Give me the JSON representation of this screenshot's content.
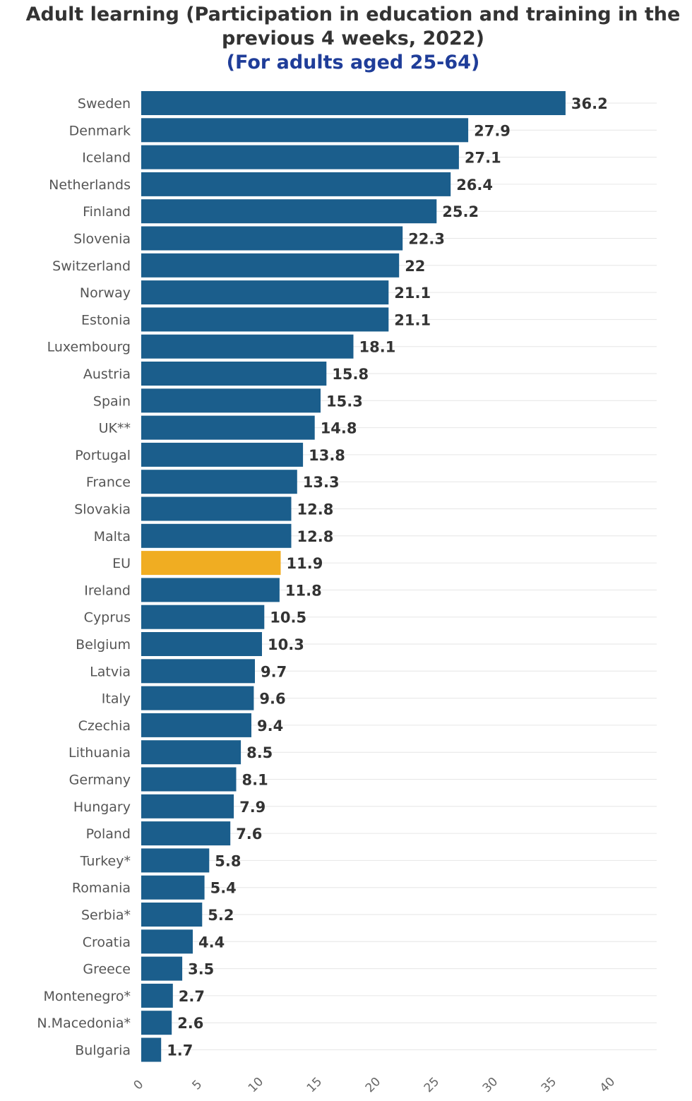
{
  "chart_data": {
    "type": "bar",
    "orientation": "horizontal",
    "title": "Adult learning (Participation in education and training in the previous 4 weeks, 2022)",
    "title_lines": [
      "Adult learning (Participation in education and training in the",
      "previous 4 weeks, 2022)"
    ],
    "subtitle": "(For adults aged 25-64)",
    "xlabel": "",
    "ylabel": "",
    "xlim": [
      0,
      44
    ],
    "ticks": [
      0,
      5,
      10,
      15,
      20,
      25,
      30,
      35,
      40
    ],
    "grid": true,
    "categories": [
      "Sweden",
      "Denmark",
      "Iceland",
      "Netherlands",
      "Finland",
      "Slovenia",
      "Switzerland",
      "Norway",
      "Estonia",
      "Luxembourg",
      "Austria",
      "Spain",
      "UK**",
      "Portugal",
      "France",
      "Slovakia",
      "Malta",
      "EU",
      "Ireland",
      "Cyprus",
      "Belgium",
      "Latvia",
      "Italy",
      "Czechia",
      "Lithuania",
      "Germany",
      "Hungary",
      "Poland",
      "Turkey*",
      "Romania",
      "Serbia*",
      "Croatia",
      "Greece",
      "Montenegro*",
      "N.Macedonia*",
      "Bulgaria"
    ],
    "values": [
      36.2,
      27.9,
      27.1,
      26.4,
      25.2,
      22.3,
      22,
      21.1,
      21.1,
      18.1,
      15.8,
      15.3,
      14.8,
      13.8,
      13.3,
      12.8,
      12.8,
      11.9,
      11.8,
      10.5,
      10.3,
      9.7,
      9.6,
      9.4,
      8.5,
      8.1,
      7.9,
      7.6,
      5.8,
      5.4,
      5.2,
      4.4,
      3.5,
      2.7,
      2.6,
      1.7
    ],
    "value_labels": [
      "36.2",
      "27.9",
      "27.1",
      "26.4",
      "25.2",
      "22.3",
      "22",
      "21.1",
      "21.1",
      "18.1",
      "15.8",
      "15.3",
      "14.8",
      "13.8",
      "13.3",
      "12.8",
      "12.8",
      "11.9",
      "11.8",
      "10.5",
      "10.3",
      "9.7",
      "9.6",
      "9.4",
      "8.5",
      "8.1",
      "7.9",
      "7.6",
      "5.8",
      "5.4",
      "5.2",
      "4.4",
      "3.5",
      "2.7",
      "2.6",
      "1.7"
    ],
    "colors": {
      "default": "#1b5e8c",
      "highlight": "#f0ad22",
      "grid": "#e6e6e6"
    },
    "highlight_category": "EU"
  }
}
